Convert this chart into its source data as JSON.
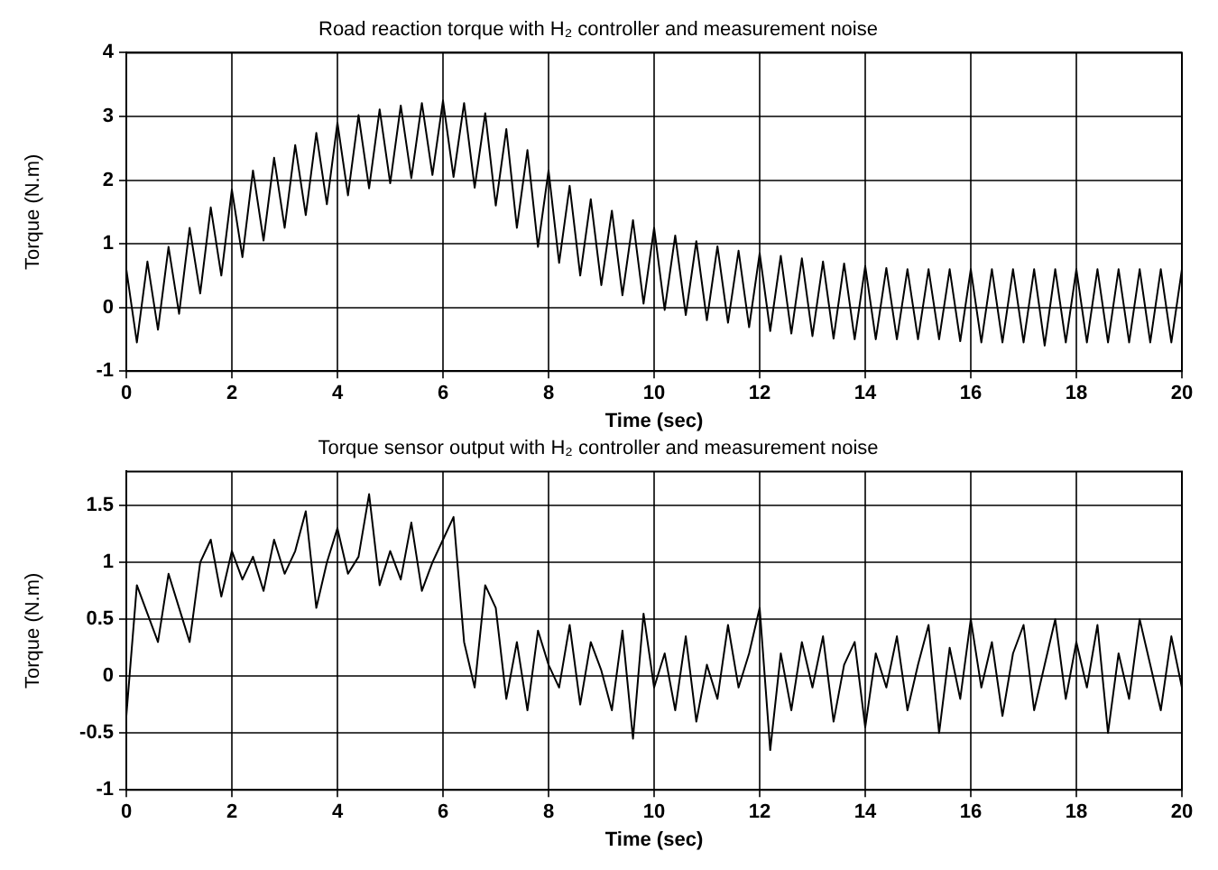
{
  "chart_data": [
    {
      "type": "line",
      "title": "Road reaction torque with H₂ controller and measurement noise",
      "xlabel": "Time (sec)",
      "ylabel": "Torque (N.m)",
      "xlim": [
        0,
        20
      ],
      "xticks": [
        0,
        2,
        4,
        6,
        8,
        10,
        12,
        14,
        16,
        18,
        20
      ],
      "ylim": [
        -1,
        4
      ],
      "yticks": [
        -1,
        0,
        1,
        2,
        3,
        4
      ],
      "grid": true,
      "legend": false,
      "marker": "none",
      "line_style": "solid",
      "x": [
        0,
        0.2,
        0.4,
        0.6,
        0.8,
        1,
        1.2,
        1.4,
        1.6,
        1.8,
        2,
        2.2,
        2.4,
        2.6,
        2.8,
        3,
        3.2,
        3.4,
        3.6,
        3.8,
        4,
        4.2,
        4.4,
        4.6,
        4.8,
        5,
        5.2,
        5.4,
        5.6,
        5.8,
        6,
        6.2,
        6.4,
        6.6,
        6.8,
        7,
        7.2,
        7.4,
        7.6,
        7.8,
        8,
        8.2,
        8.4,
        8.6,
        8.8,
        9,
        9.2,
        9.4,
        9.6,
        9.8,
        10,
        10.2,
        10.4,
        10.6,
        10.8,
        11,
        11.2,
        11.4,
        11.6,
        11.8,
        12,
        12.2,
        12.4,
        12.6,
        12.8,
        13,
        13.2,
        13.4,
        13.6,
        13.8,
        14,
        14.2,
        14.4,
        14.6,
        14.8,
        15,
        15.2,
        15.4,
        15.6,
        15.8,
        16,
        16.2,
        16.4,
        16.6,
        16.8,
        17,
        17.2,
        17.4,
        17.6,
        17.8,
        18,
        18.2,
        18.4,
        18.6,
        18.8,
        19,
        19.2,
        19.4,
        19.6,
        19.8,
        20
      ],
      "series": [
        {
          "color": "#000000",
          "values": [
            0.6,
            -0.55,
            0.72,
            -0.35,
            0.95,
            -0.1,
            1.25,
            0.22,
            1.57,
            0.5,
            1.85,
            0.79,
            2.15,
            1.05,
            2.35,
            1.25,
            2.55,
            1.45,
            2.74,
            1.62,
            2.9,
            1.76,
            3.02,
            1.87,
            3.11,
            1.95,
            3.17,
            2.03,
            3.21,
            2.08,
            3.25,
            2.05,
            3.21,
            1.88,
            3.05,
            1.6,
            2.8,
            1.25,
            2.47,
            0.95,
            2.15,
            0.7,
            1.91,
            0.5,
            1.7,
            0.35,
            1.52,
            0.19,
            1.37,
            0.06,
            1.25,
            -0.04,
            1.13,
            -0.12,
            1.04,
            -0.2,
            0.96,
            -0.24,
            0.89,
            -0.31,
            0.85,
            -0.37,
            0.81,
            -0.41,
            0.77,
            -0.45,
            0.72,
            -0.49,
            0.69,
            -0.5,
            0.65,
            -0.5,
            0.62,
            -0.5,
            0.6,
            -0.5,
            0.6,
            -0.5,
            0.6,
            -0.53,
            0.6,
            -0.55,
            0.6,
            -0.55,
            0.6,
            -0.55,
            0.6,
            -0.6,
            0.6,
            -0.55,
            0.6,
            -0.55,
            0.6,
            -0.55,
            0.6,
            -0.55,
            0.6,
            -0.55,
            0.6,
            -0.55,
            0.6
          ]
        }
      ]
    },
    {
      "type": "line",
      "title": "Torque sensor output with H₂ controller and measurement noise",
      "xlabel": "Time (sec)",
      "ylabel": "Torque (N.m)",
      "xlim": [
        0,
        20
      ],
      "xticks": [
        0,
        2,
        4,
        6,
        8,
        10,
        12,
        14,
        16,
        18,
        20
      ],
      "ylim": [
        -1,
        1.8
      ],
      "yticks": [
        -1,
        -0.5,
        0,
        0.5,
        1,
        1.5
      ],
      "grid": true,
      "legend": false,
      "marker": "none",
      "line_style": "solid",
      "x": [
        0,
        0.2,
        0.4,
        0.6,
        0.8,
        1,
        1.2,
        1.4,
        1.6,
        1.8,
        2,
        2.2,
        2.4,
        2.6,
        2.8,
        3,
        3.2,
        3.4,
        3.6,
        3.8,
        4,
        4.2,
        4.4,
        4.6,
        4.8,
        5,
        5.2,
        5.4,
        5.6,
        5.8,
        6,
        6.2,
        6.4,
        6.6,
        6.8,
        7,
        7.2,
        7.4,
        7.6,
        7.8,
        8,
        8.2,
        8.4,
        8.6,
        8.8,
        9,
        9.2,
        9.4,
        9.6,
        9.8,
        10,
        10.2,
        10.4,
        10.6,
        10.8,
        11,
        11.2,
        11.4,
        11.6,
        11.8,
        12,
        12.2,
        12.4,
        12.6,
        12.8,
        13,
        13.2,
        13.4,
        13.6,
        13.8,
        14,
        14.2,
        14.4,
        14.6,
        14.8,
        15,
        15.2,
        15.4,
        15.6,
        15.8,
        16,
        16.2,
        16.4,
        16.6,
        16.8,
        17,
        17.2,
        17.4,
        17.6,
        17.8,
        18,
        18.2,
        18.4,
        18.6,
        18.8,
        19,
        19.2,
        19.4,
        19.6,
        19.8,
        20
      ],
      "series": [
        {
          "color": "#000000",
          "values": [
            -0.35,
            0.8,
            0.55,
            0.3,
            0.9,
            0.6,
            0.3,
            1.0,
            1.2,
            0.7,
            1.1,
            0.85,
            1.05,
            0.75,
            1.2,
            0.9,
            1.1,
            1.45,
            0.6,
            1.0,
            1.3,
            0.9,
            1.05,
            1.6,
            0.8,
            1.1,
            0.85,
            1.35,
            0.75,
            1.0,
            1.2,
            1.4,
            0.3,
            -0.1,
            0.8,
            0.6,
            -0.2,
            0.3,
            -0.3,
            0.4,
            0.1,
            -0.1,
            0.45,
            -0.25,
            0.3,
            0.05,
            -0.3,
            0.4,
            -0.55,
            0.55,
            -0.1,
            0.2,
            -0.3,
            0.35,
            -0.4,
            0.1,
            -0.2,
            0.45,
            -0.1,
            0.2,
            0.6,
            -0.65,
            0.2,
            -0.3,
            0.3,
            -0.1,
            0.35,
            -0.4,
            0.1,
            0.3,
            -0.45,
            0.2,
            -0.1,
            0.35,
            -0.3,
            0.1,
            0.45,
            -0.5,
            0.25,
            -0.2,
            0.5,
            -0.1,
            0.3,
            -0.35,
            0.2,
            0.45,
            -0.3,
            0.1,
            0.5,
            -0.2,
            0.3,
            -0.1,
            0.45,
            -0.5,
            0.2,
            -0.2,
            0.5,
            0.1,
            -0.3,
            0.35,
            -0.1
          ]
        }
      ]
    }
  ]
}
